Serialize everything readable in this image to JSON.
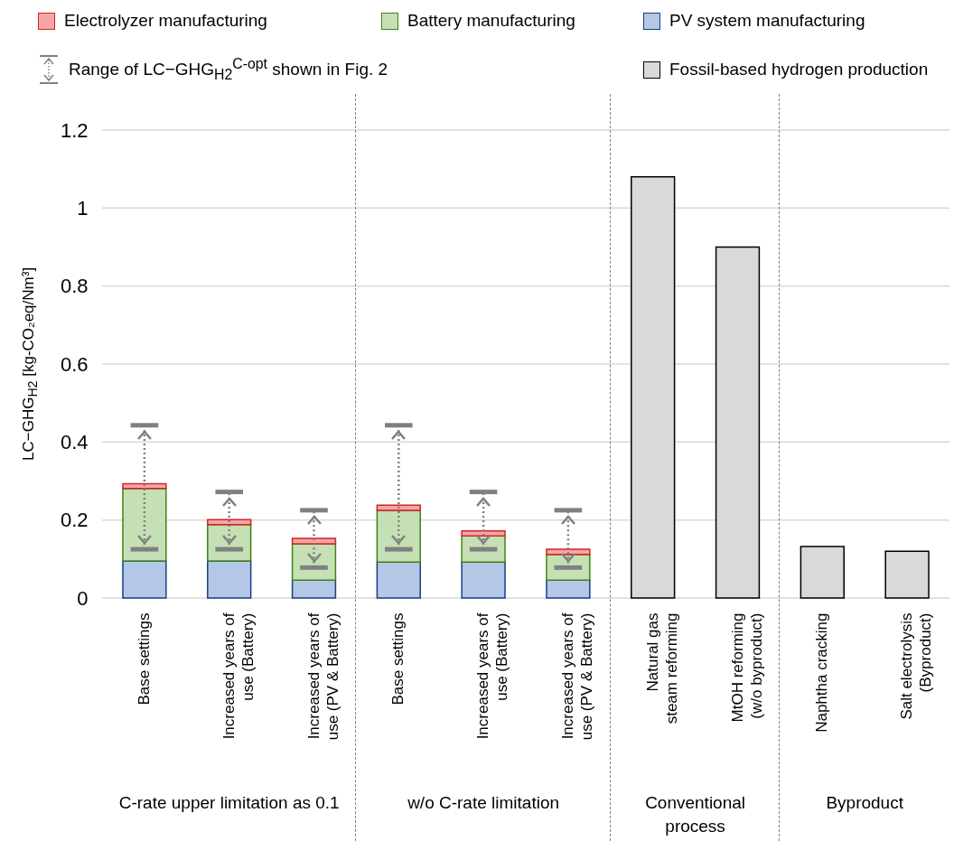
{
  "chart_data": {
    "type": "bar",
    "stacked": true,
    "ylabel": "LC−GHG$_{H2}$ [kg-CO₂eq/Nm³]",
    "categories": [
      "Base settings",
      "Increased years of\nuse (Battery)",
      "Increased years of\nuse (PV & Battery)",
      "Base settings",
      "Increased years of\nuse (Battery)",
      "Increased years of\nuse (PV & Battery)",
      "Natural gas\nsteam reforming",
      "MtOH reforming\n(w/o byproduct)",
      "Naphtha cracking",
      "Salt electrolysis\n(Byproduct)"
    ],
    "series": [
      {
        "name": "Fossil-based hydrogen production",
        "color": "#d9d9d9",
        "values": [
          null,
          null,
          null,
          null,
          null,
          null,
          1.08,
          0.9,
          0.132,
          0.12
        ]
      },
      {
        "name": "PV system manufacturing",
        "color": "#b4c7e7",
        "values": [
          0.095,
          0.095,
          0.046,
          0.092,
          0.092,
          0.046,
          null,
          null,
          null,
          null
        ]
      },
      {
        "name": "Battery manufacturing",
        "color": "#c5e0b4",
        "values": [
          0.186,
          0.093,
          0.093,
          0.133,
          0.067,
          0.066,
          null,
          null,
          null,
          null
        ]
      },
      {
        "name": "Electrolyzer manufacturing",
        "color": "#f4a6a6",
        "values": [
          0.012,
          0.013,
          0.014,
          0.013,
          0.013,
          0.013,
          null,
          null,
          null,
          null
        ],
        "errors": [
          [
            0.125,
            0.443
          ],
          [
            0.125,
            0.272
          ],
          [
            0.078,
            0.225
          ],
          [
            0.125,
            0.443
          ],
          [
            0.125,
            0.272
          ],
          [
            0.078,
            0.225
          ],
          null,
          null,
          null,
          null
        ]
      }
    ],
    "ylim": [
      0,
      1.2
    ],
    "yticks": [
      0,
      0.2,
      0.4,
      0.6,
      0.8,
      1,
      1.2
    ],
    "grid": "y",
    "legend": "top",
    "annotations": [
      "Range of LC−GHG$_{H2}$$^{C-opt}$ shown in Fig. 2",
      "C-rate upper limitation as 0.1",
      "w/o C-rate limitation",
      "Conventional process",
      "Byproduct"
    ]
  }
}
